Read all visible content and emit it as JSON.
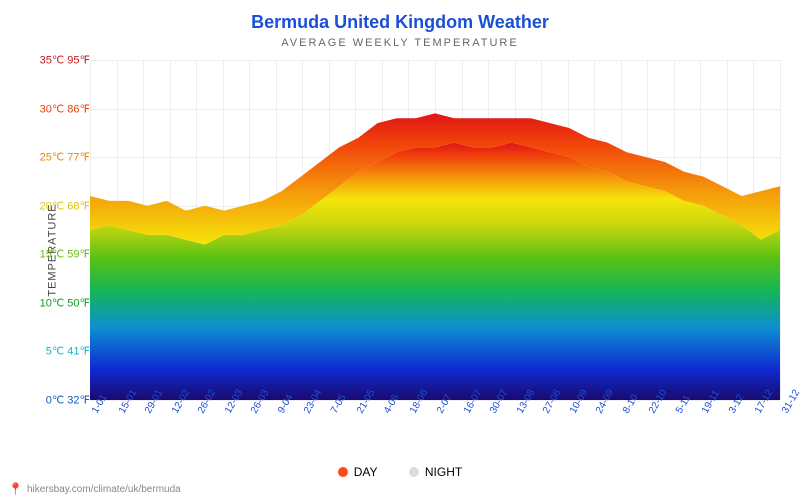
{
  "title": "Bermuda United Kingdom Weather",
  "title_color": "#1a4fd8",
  "subtitle": "AVERAGE WEEKLY TEMPERATURE",
  "y_axis_label": "TEMPERATURE",
  "background_color": "#ffffff",
  "ylim": [
    0,
    35
  ],
  "y_ticks": [
    {
      "c": "0℃",
      "f": "32℉",
      "val": 0,
      "color": "#0d5cc9"
    },
    {
      "c": "5℃",
      "f": "41℉",
      "val": 5,
      "color": "#18b5c4"
    },
    {
      "c": "10℃",
      "f": "50℉",
      "val": 10,
      "color": "#0f9c27"
    },
    {
      "c": "15℃",
      "f": "59℉",
      "val": 15,
      "color": "#6cb80c"
    },
    {
      "c": "20℃",
      "f": "68℉",
      "val": 20,
      "color": "#d8c80a"
    },
    {
      "c": "25℃",
      "f": "77℉",
      "val": 25,
      "color": "#e68a0a"
    },
    {
      "c": "30℃",
      "f": "86℉",
      "val": 30,
      "color": "#e6460a"
    },
    {
      "c": "35℃",
      "f": "95℉",
      "val": 35,
      "color": "#cc1a1a"
    }
  ],
  "x_tick_color": "#1a4fd8",
  "x_tick_fontsize": 10,
  "x_ticks": [
    "1-01",
    "15-01",
    "29-01",
    "12-02",
    "26-02",
    "12-03",
    "26-03",
    "9-04",
    "23-04",
    "7-05",
    "21-05",
    "4-06",
    "18-06",
    "2-07",
    "16-07",
    "30-07",
    "13-08",
    "27-08",
    "10-09",
    "24-09",
    "8-10",
    "22-10",
    "5-11",
    "19-11",
    "3-12",
    "17-12",
    "31-12"
  ],
  "day_temps": [
    21,
    20.5,
    20.5,
    20,
    20.5,
    19.5,
    20,
    19.5,
    20,
    20.5,
    21.5,
    23,
    24.5,
    26,
    27,
    28.5,
    29,
    29,
    29.5,
    29,
    29,
    29,
    29,
    29,
    28.5,
    28,
    27,
    26.5,
    25.5,
    25,
    24.5,
    23.5,
    23,
    22,
    21,
    21.5,
    22
  ],
  "night_temps": [
    17.5,
    18,
    17.5,
    17,
    17,
    16.5,
    16,
    17,
    17,
    17.5,
    18,
    19,
    20.5,
    22,
    23.5,
    24.5,
    25.5,
    26,
    26,
    26.5,
    26,
    26,
    26.5,
    26,
    25.5,
    25,
    24,
    23.5,
    22.5,
    22,
    21.5,
    20.5,
    20,
    19,
    18,
    16.5,
    17.5
  ],
  "legend": {
    "day": {
      "label": "DAY",
      "color": "#ff4a1a"
    },
    "night": {
      "label": "NIGHT",
      "color": "#d9dde3"
    }
  },
  "gradient_stops": [
    {
      "pct": 0,
      "color": "#1a0a6e"
    },
    {
      "pct": 12,
      "color": "#0d2bd1"
    },
    {
      "pct": 28,
      "color": "#0d8ed1"
    },
    {
      "pct": 42,
      "color": "#13b55a"
    },
    {
      "pct": 55,
      "color": "#58c213"
    },
    {
      "pct": 68,
      "color": "#c9d60e"
    },
    {
      "pct": 78,
      "color": "#f5e50a"
    },
    {
      "pct": 86,
      "color": "#f59b0a"
    },
    {
      "pct": 94,
      "color": "#f2470a"
    },
    {
      "pct": 100,
      "color": "#e01515"
    }
  ],
  "grid_color": "#eeeeee",
  "footer": {
    "pin": "📍",
    "text": "hikersbay.com/climate/uk/bermuda"
  }
}
